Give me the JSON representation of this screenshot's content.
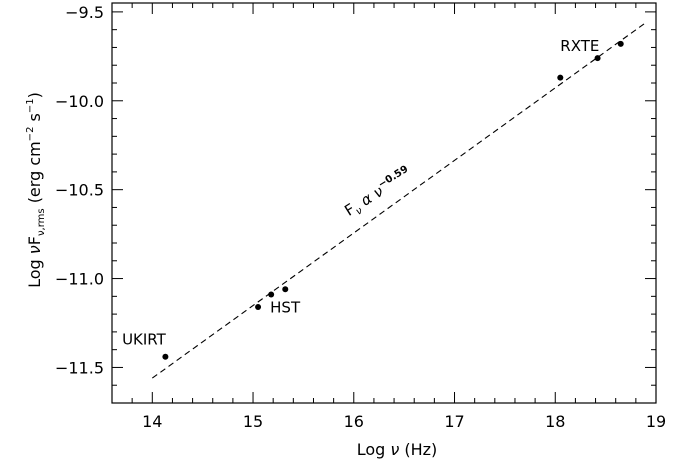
{
  "chart_data": {
    "type": "scatter",
    "xlabel": {
      "prefix": "Log ",
      "symbol": "ν",
      "suffix": " (Hz)"
    },
    "ylabel": {
      "prefix": "Log ",
      "nu": "ν",
      "F": "F",
      "sub": "ν,rms",
      "unit_pre": " (erg cm",
      "exp1": "−2",
      "unit_mid": " s",
      "exp2": "−1",
      "unit_post": ")"
    },
    "xlim": [
      13.6,
      19.0
    ],
    "ylim": [
      -11.7,
      -9.45
    ],
    "xticks": [
      14,
      15,
      16,
      17,
      18,
      19
    ],
    "xtick_labels": [
      "14",
      "15",
      "16",
      "17",
      "18",
      "19"
    ],
    "yticks": [
      -9.5,
      -10.0,
      -10.5,
      -11.0,
      -11.5
    ],
    "ytick_labels": [
      "−9.5",
      "−10.0",
      "−10.5",
      "−11.0",
      "−11.5"
    ],
    "x_minor_step": 0.2,
    "y_minor_step": 0.1,
    "points": [
      {
        "x": 14.13,
        "y": -11.44
      },
      {
        "x": 15.05,
        "y": -11.16
      },
      {
        "x": 15.18,
        "y": -11.09
      },
      {
        "x": 15.32,
        "y": -11.06
      },
      {
        "x": 18.05,
        "y": -9.87
      },
      {
        "x": 18.42,
        "y": -9.76
      },
      {
        "x": 18.65,
        "y": -9.68
      }
    ],
    "fit_line": {
      "x": [
        14.0,
        18.9
      ],
      "y": [
        -11.56,
        -9.56
      ],
      "style": "dashed"
    },
    "annotations": [
      {
        "text": "UKIRT",
        "x": 13.7,
        "y": -11.37
      },
      {
        "text": "HST",
        "x": 15.17,
        "y": -11.19
      },
      {
        "text": "RXTE",
        "x": 18.05,
        "y": -9.72
      }
    ],
    "fit_label": {
      "F": "F",
      "sub": "ν",
      "alpha": " α ",
      "nu": "ν",
      "exp": "−0.59",
      "x": 15.95,
      "y": -10.65,
      "rotation": -32
    }
  }
}
